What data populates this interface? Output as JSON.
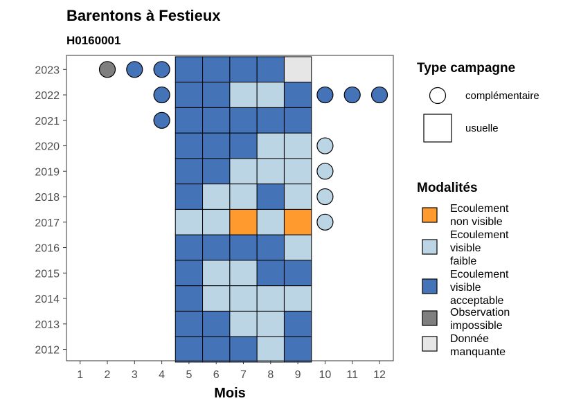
{
  "chart_data": {
    "type": "heatmap",
    "title": "Barentons à Festieux",
    "subtitle": "H0160001",
    "xlabel": "Mois",
    "ylabel": "",
    "x_ticks": [
      1,
      2,
      3,
      4,
      5,
      6,
      7,
      8,
      9,
      10,
      11,
      12
    ],
    "y_ticks": [
      2023,
      2022,
      2021,
      2020,
      2019,
      2018,
      2017,
      2016,
      2015,
      2014,
      2013,
      2012
    ],
    "legend_type": {
      "title": "Type campagne",
      "items": [
        {
          "key": "complementaire",
          "label": "complémentaire",
          "shape": "circle"
        },
        {
          "key": "usuelle",
          "label": "usuelle",
          "shape": "square"
        }
      ]
    },
    "legend_modalites": {
      "title": "Modalités",
      "items": [
        {
          "key": "ENV",
          "lines": [
            "Ecoulement",
            "non visible"
          ],
          "color": "#fe9a2e"
        },
        {
          "key": "EVF",
          "lines": [
            "Ecoulement",
            "visible",
            "faible"
          ],
          "color": "#bcd5e5"
        },
        {
          "key": "EVA",
          "lines": [
            "Ecoulement",
            "visible",
            "acceptable"
          ],
          "color": "#4473b8"
        },
        {
          "key": "OBS",
          "lines": [
            "Observation",
            "impossible"
          ],
          "color": "#7f7f7f"
        },
        {
          "key": "ND",
          "lines": [
            "Donnée",
            "manquante"
          ],
          "color": "#e6e6e6"
        }
      ]
    },
    "usuelle": [
      {
        "year": 2023,
        "values": {
          "5": "EVA",
          "6": "EVA",
          "7": "EVA",
          "8": "EVA",
          "9": "ND"
        }
      },
      {
        "year": 2022,
        "values": {
          "5": "EVA",
          "6": "EVA",
          "7": "EVF",
          "8": "EVF",
          "9": "EVA"
        }
      },
      {
        "year": 2021,
        "values": {
          "5": "EVA",
          "6": "EVA",
          "7": "EVA",
          "8": "EVA",
          "9": "EVA"
        }
      },
      {
        "year": 2020,
        "values": {
          "5": "EVA",
          "6": "EVA",
          "7": "EVA",
          "8": "EVF",
          "9": "EVF"
        }
      },
      {
        "year": 2019,
        "values": {
          "5": "EVA",
          "6": "EVA",
          "7": "EVF",
          "8": "EVF",
          "9": "EVF"
        }
      },
      {
        "year": 2018,
        "values": {
          "5": "EVA",
          "6": "EVF",
          "7": "EVF",
          "8": "EVA",
          "9": "EVF"
        }
      },
      {
        "year": 2017,
        "values": {
          "5": "EVF",
          "6": "EVF",
          "7": "ENV",
          "8": "EVF",
          "9": "ENV"
        }
      },
      {
        "year": 2016,
        "values": {
          "5": "EVA",
          "6": "EVA",
          "7": "EVA",
          "8": "EVA",
          "9": "EVF"
        }
      },
      {
        "year": 2015,
        "values": {
          "5": "EVA",
          "6": "EVF",
          "7": "EVF",
          "8": "EVA",
          "9": "EVA"
        }
      },
      {
        "year": 2014,
        "values": {
          "5": "EVA",
          "6": "EVF",
          "7": "EVF",
          "8": "EVF",
          "9": "EVF"
        }
      },
      {
        "year": 2013,
        "values": {
          "5": "EVA",
          "6": "EVA",
          "7": "EVF",
          "8": "EVF",
          "9": "EVA"
        }
      },
      {
        "year": 2012,
        "values": {
          "5": "EVA",
          "6": "EVA",
          "7": "EVA",
          "8": "EVF",
          "9": "EVA"
        }
      }
    ],
    "complementaire": [
      {
        "year": 2023,
        "month": 2,
        "mod": "OBS"
      },
      {
        "year": 2023,
        "month": 3,
        "mod": "EVA"
      },
      {
        "year": 2023,
        "month": 4,
        "mod": "EVA"
      },
      {
        "year": 2022,
        "month": 4,
        "mod": "EVA"
      },
      {
        "year": 2022,
        "month": 10,
        "mod": "EVA"
      },
      {
        "year": 2022,
        "month": 11,
        "mod": "EVA"
      },
      {
        "year": 2022,
        "month": 12,
        "mod": "EVA"
      },
      {
        "year": 2021,
        "month": 4,
        "mod": "EVA"
      },
      {
        "year": 2020,
        "month": 10,
        "mod": "EVF"
      },
      {
        "year": 2019,
        "month": 10,
        "mod": "EVF"
      },
      {
        "year": 2018,
        "month": 10,
        "mod": "EVF"
      },
      {
        "year": 2017,
        "month": 10,
        "mod": "EVF"
      }
    ]
  }
}
